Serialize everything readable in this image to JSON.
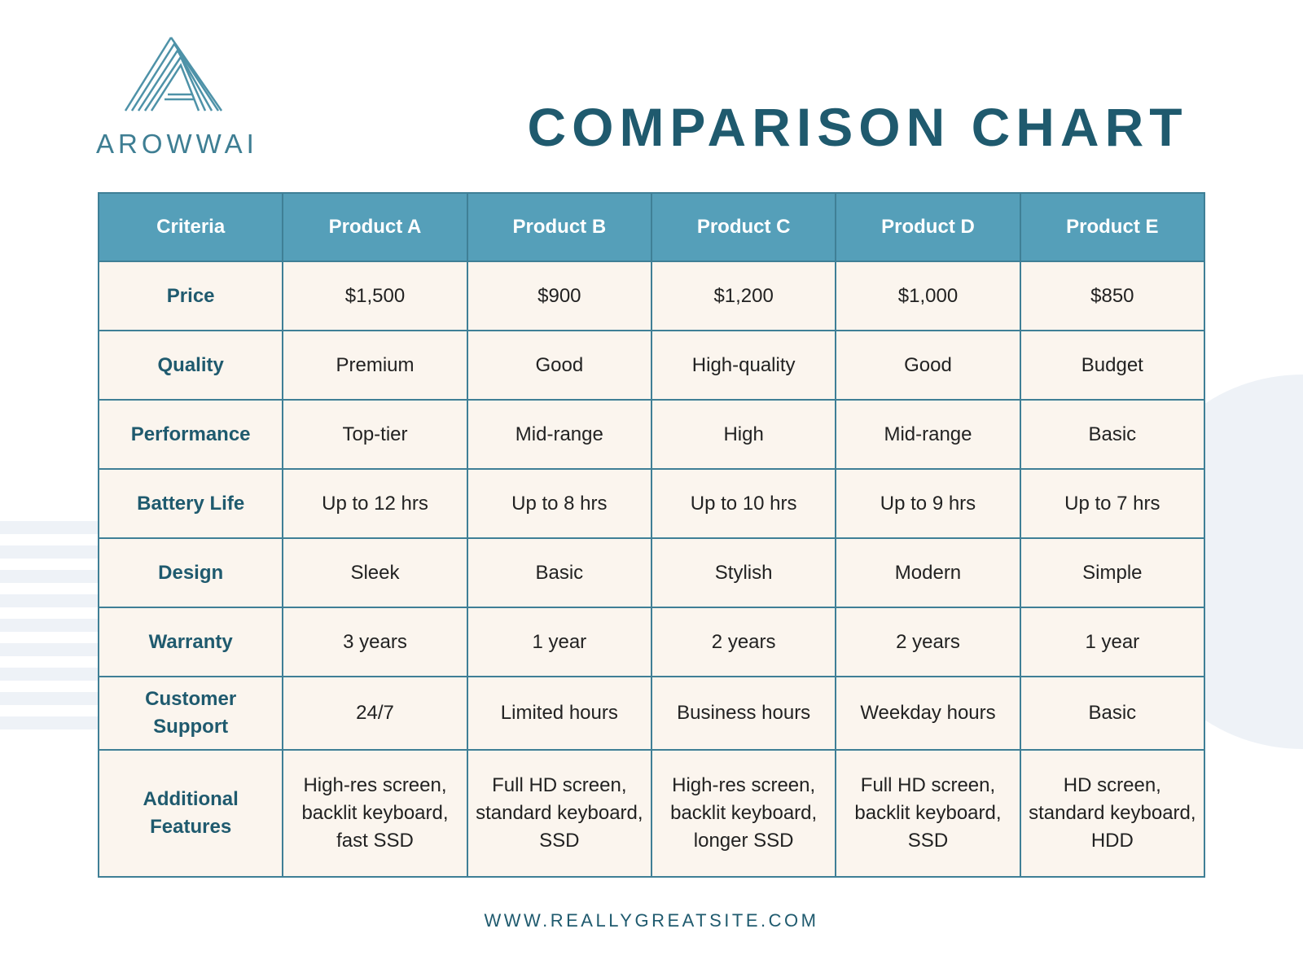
{
  "brand": {
    "name": "AROWWAI",
    "logo_icon": "stacked-triangle-a-logo"
  },
  "title": "COMPARISON CHART",
  "colors": {
    "header_bg": "#559fb9",
    "accent_text": "#1f5a6e",
    "cell_bg": "#fbf5ee",
    "border": "#3f7f96"
  },
  "table": {
    "headers": [
      "Criteria",
      "Product A",
      "Product B",
      "Product C",
      "Product D",
      "Product E"
    ],
    "rows": [
      {
        "criteria": "Price",
        "values": [
          "$1,500",
          "$900",
          "$1,200",
          "$1,000",
          "$850"
        ]
      },
      {
        "criteria": "Quality",
        "values": [
          "Premium",
          "Good",
          "High-quality",
          "Good",
          "Budget"
        ]
      },
      {
        "criteria": "Performance",
        "values": [
          "Top-tier",
          "Mid-range",
          "High",
          "Mid-range",
          "Basic"
        ]
      },
      {
        "criteria": "Battery Life",
        "values": [
          "Up to 12 hrs",
          "Up to 8 hrs",
          "Up to 10 hrs",
          "Up to 9 hrs",
          "Up to 7 hrs"
        ]
      },
      {
        "criteria": "Design",
        "values": [
          "Sleek",
          "Basic",
          "Stylish",
          "Modern",
          "Simple"
        ]
      },
      {
        "criteria": "Warranty",
        "values": [
          "3 years",
          "1 year",
          "2 years",
          "2 years",
          "1 year"
        ]
      },
      {
        "criteria": "Customer Support",
        "values": [
          "24/7",
          "Limited hours",
          "Business hours",
          "Weekday hours",
          "Basic"
        ]
      },
      {
        "criteria": "Additional Features",
        "values": [
          "High-res screen, backlit keyboard, fast SSD",
          "Full HD screen, standard keyboard, SSD",
          "High-res screen, backlit keyboard, longer SSD",
          "Full HD screen, backlit keyboard, SSD",
          "HD screen, standard keyboard, HDD"
        ]
      }
    ]
  },
  "footer": {
    "website": "WWW.REALLYGREATSITE.COM"
  }
}
